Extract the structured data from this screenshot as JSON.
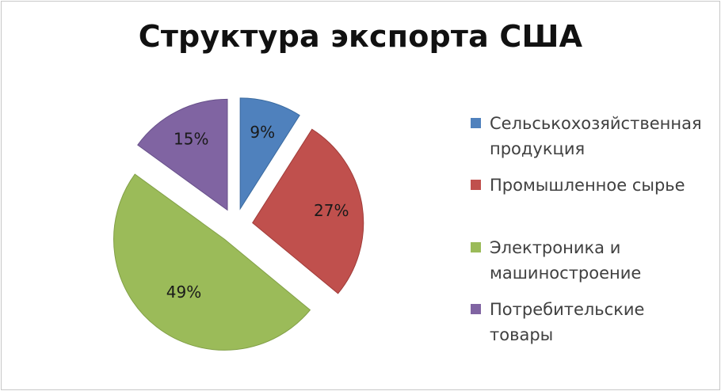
{
  "chart_data": {
    "type": "pie",
    "title": "Структура экспорта США",
    "slices": [
      {
        "label": "Сельськохозяйственная продукция",
        "label_lines": [
          "Сельськохозяйственная",
          "продукция"
        ],
        "value": 9,
        "display": "9%",
        "color": "#4f81bd"
      },
      {
        "label": "Промышленное сырье",
        "label_lines": [
          "Промышленное сырье"
        ],
        "value": 27,
        "display": "27%",
        "color": "#c0504d"
      },
      {
        "label": "Электроника и машиностроение",
        "label_lines": [
          "Электроника и",
          "машиностроение"
        ],
        "value": 49,
        "display": "49%",
        "color": "#9bbb59"
      },
      {
        "label": "Потребительские товары",
        "label_lines": [
          "Потребительские",
          "товары"
        ],
        "value": 15,
        "display": "15%",
        "color": "#8064a2"
      }
    ],
    "legend_position": "right",
    "exploded": true
  }
}
